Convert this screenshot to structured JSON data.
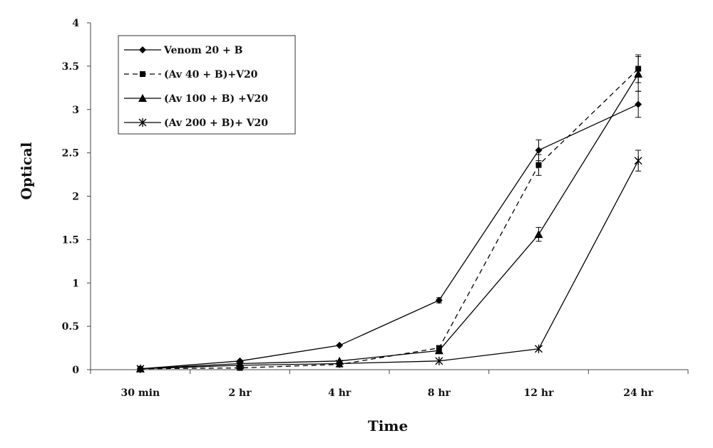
{
  "chart_data": {
    "type": "line",
    "title": "",
    "xlabel": "Time",
    "ylabel": "Optical",
    "categories": [
      "30 min",
      "2 hr",
      "4 hr",
      "8 hr",
      "12 hr",
      "24 hr"
    ],
    "ylim": [
      0,
      4
    ],
    "yticks": [
      "0",
      "0.5",
      "1",
      "1.5",
      "2",
      "2.5",
      "3",
      "3.5",
      "4"
    ],
    "grid": false,
    "legend_position": "top-left",
    "series": [
      {
        "name": "Venom 20 + B",
        "values": [
          0.01,
          0.1,
          0.28,
          0.8,
          2.53,
          3.06
        ],
        "error": [
          0,
          0,
          0,
          0.03,
          0.12,
          0.15
        ],
        "marker": "diamond",
        "dash": "solid"
      },
      {
        "name": "(Av 40 + B)+V20",
        "values": [
          0.01,
          0.02,
          0.06,
          0.25,
          2.36,
          3.47
        ],
        "error": [
          0,
          0,
          0,
          0,
          0.12,
          0.16
        ],
        "marker": "square",
        "dash": "dashed"
      },
      {
        "name": "(Av 100 + B) +V20",
        "values": [
          0.01,
          0.07,
          0.1,
          0.22,
          1.56,
          3.41
        ],
        "error": [
          0,
          0,
          0,
          0,
          0.08,
          0.2
        ],
        "marker": "triangle",
        "dash": "solid"
      },
      {
        "name": "(Av 200 + B)+ V20",
        "values": [
          0.01,
          0.05,
          0.07,
          0.1,
          0.24,
          2.41
        ],
        "error": [
          0,
          0,
          0,
          0,
          0,
          0.12
        ],
        "marker": "asterisk",
        "dash": "solid"
      }
    ]
  }
}
